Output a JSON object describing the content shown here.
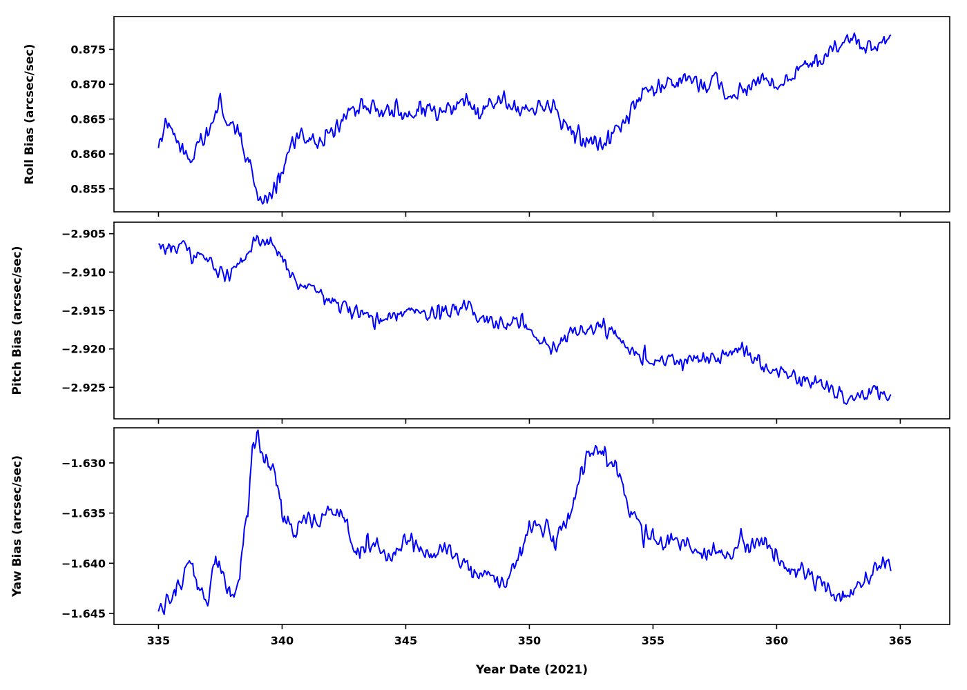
{
  "colors": {
    "series": "#0000ff",
    "axes": "#000000",
    "background": "#ffffff"
  },
  "chart_data": [
    {
      "type": "line",
      "id": "roll",
      "ylabel": "Roll Bias (arcsec/sec)",
      "xlabel": "",
      "xlim": [
        333.2,
        367.0
      ],
      "ylim": [
        0.8517,
        0.8797
      ],
      "xticks": [
        335,
        340,
        345,
        350,
        355,
        360,
        365
      ],
      "show_xticklabels": false,
      "yticks": [
        0.855,
        0.86,
        0.865,
        0.87,
        0.875
      ],
      "ytick_labels": [
        "0.855",
        "0.860",
        "0.865",
        "0.870",
        "0.875"
      ],
      "grid": false,
      "series": [
        {
          "anchors": [
            [
              335.0,
              0.8615
            ],
            [
              335.3,
              0.8645
            ],
            [
              335.6,
              0.8625
            ],
            [
              336.0,
              0.8605
            ],
            [
              336.3,
              0.8585
            ],
            [
              336.6,
              0.862
            ],
            [
              337.0,
              0.8625
            ],
            [
              337.3,
              0.866
            ],
            [
              337.5,
              0.8675
            ],
            [
              337.8,
              0.864
            ],
            [
              338.2,
              0.8635
            ],
            [
              338.5,
              0.86
            ],
            [
              338.8,
              0.858
            ],
            [
              339.0,
              0.8535
            ],
            [
              339.3,
              0.8535
            ],
            [
              339.6,
              0.8545
            ],
            [
              340.0,
              0.8575
            ],
            [
              340.3,
              0.861
            ],
            [
              340.8,
              0.8625
            ],
            [
              341.5,
              0.8615
            ],
            [
              342.0,
              0.8625
            ],
            [
              342.5,
              0.8655
            ],
            [
              343.0,
              0.8665
            ],
            [
              343.5,
              0.867
            ],
            [
              344.0,
              0.866
            ],
            [
              344.5,
              0.866
            ],
            [
              345.0,
              0.8655
            ],
            [
              345.5,
              0.8665
            ],
            [
              346.0,
              0.8665
            ],
            [
              346.5,
              0.8655
            ],
            [
              347.0,
              0.8665
            ],
            [
              347.5,
              0.8675
            ],
            [
              348.0,
              0.8665
            ],
            [
              348.5,
              0.8675
            ],
            [
              349.0,
              0.868
            ],
            [
              349.5,
              0.8665
            ],
            [
              350.0,
              0.867
            ],
            [
              350.5,
              0.8665
            ],
            [
              351.0,
              0.867
            ],
            [
              351.5,
              0.8645
            ],
            [
              352.0,
              0.8625
            ],
            [
              352.5,
              0.862
            ],
            [
              353.0,
              0.8615
            ],
            [
              353.5,
              0.8635
            ],
            [
              354.0,
              0.8655
            ],
            [
              354.5,
              0.868
            ],
            [
              355.0,
              0.8695
            ],
            [
              355.5,
              0.87
            ],
            [
              356.0,
              0.8695
            ],
            [
              356.5,
              0.871
            ],
            [
              357.0,
              0.8695
            ],
            [
              357.5,
              0.8705
            ],
            [
              358.0,
              0.8685
            ],
            [
              358.5,
              0.869
            ],
            [
              359.0,
              0.8695
            ],
            [
              359.5,
              0.871
            ],
            [
              360.0,
              0.87
            ],
            [
              360.5,
              0.8715
            ],
            [
              361.0,
              0.8725
            ],
            [
              361.5,
              0.8725
            ],
            [
              362.0,
              0.8745
            ],
            [
              362.5,
              0.875
            ],
            [
              363.0,
              0.8765
            ],
            [
              363.5,
              0.8755
            ],
            [
              364.0,
              0.875
            ],
            [
              364.6,
              0.876
            ]
          ],
          "noise": 0.0014,
          "x_end": 364.62
        }
      ]
    },
    {
      "type": "line",
      "id": "pitch",
      "ylabel": "Pitch Bias (arcsec/sec)",
      "xlabel": "",
      "xlim": [
        333.2,
        367.0
      ],
      "ylim": [
        -2.9291,
        -2.9035
      ],
      "xticks": [
        335,
        340,
        345,
        350,
        355,
        360,
        365
      ],
      "show_xticklabels": false,
      "yticks": [
        -2.905,
        -2.91,
        -2.915,
        -2.92,
        -2.925
      ],
      "ytick_labels": [
        "−2.905",
        "−2.910",
        "−2.915",
        "−2.920",
        "−2.925"
      ],
      "grid": false,
      "series": [
        {
          "anchors": [
            [
              335.0,
              -2.9068
            ],
            [
              335.5,
              -2.9072
            ],
            [
              336.0,
              -2.9068
            ],
            [
              336.5,
              -2.9078
            ],
            [
              337.0,
              -2.9082
            ],
            [
              337.5,
              -2.9108
            ],
            [
              338.0,
              -2.9102
            ],
            [
              338.5,
              -2.9082
            ],
            [
              339.0,
              -2.9055
            ],
            [
              339.5,
              -2.9062
            ],
            [
              340.0,
              -2.9078
            ],
            [
              340.5,
              -2.9112
            ],
            [
              341.0,
              -2.9122
            ],
            [
              341.5,
              -2.9128
            ],
            [
              342.0,
              -2.9135
            ],
            [
              342.5,
              -2.9145
            ],
            [
              343.0,
              -2.9152
            ],
            [
              343.5,
              -2.9158
            ],
            [
              344.0,
              -2.9162
            ],
            [
              345.0,
              -2.9152
            ],
            [
              345.5,
              -2.9148
            ],
            [
              346.0,
              -2.9155
            ],
            [
              346.5,
              -2.9152
            ],
            [
              347.0,
              -2.9148
            ],
            [
              347.5,
              -2.9142
            ],
            [
              348.0,
              -2.9162
            ],
            [
              349.0,
              -2.9168
            ],
            [
              349.5,
              -2.9165
            ],
            [
              350.0,
              -2.9172
            ],
            [
              350.5,
              -2.9192
            ],
            [
              351.0,
              -2.9198
            ],
            [
              351.5,
              -2.9188
            ],
            [
              352.0,
              -2.9178
            ],
            [
              352.5,
              -2.9172
            ],
            [
              353.0,
              -2.9172
            ],
            [
              353.5,
              -2.9178
            ],
            [
              354.0,
              -2.9198
            ],
            [
              354.5,
              -2.9212
            ],
            [
              355.0,
              -2.9215
            ],
            [
              355.5,
              -2.9212
            ],
            [
              356.0,
              -2.9218
            ],
            [
              356.5,
              -2.9215
            ],
            [
              357.0,
              -2.9212
            ],
            [
              357.5,
              -2.9212
            ],
            [
              358.0,
              -2.9205
            ],
            [
              358.5,
              -2.9198
            ],
            [
              359.0,
              -2.9212
            ],
            [
              359.5,
              -2.9225
            ],
            [
              360.0,
              -2.9228
            ],
            [
              360.5,
              -2.9232
            ],
            [
              361.0,
              -2.9238
            ],
            [
              361.5,
              -2.9242
            ],
            [
              362.0,
              -2.9248
            ],
            [
              362.5,
              -2.9258
            ],
            [
              363.0,
              -2.9265
            ],
            [
              363.5,
              -2.9262
            ],
            [
              364.0,
              -2.9255
            ],
            [
              364.6,
              -2.9262
            ]
          ],
          "noise": 0.0011,
          "x_end": 364.62
        }
      ]
    },
    {
      "type": "line",
      "id": "yaw",
      "ylabel": "Yaw Bias (arcsec/sec)",
      "xlabel": "Year Date (2021)",
      "xlim": [
        333.2,
        367.0
      ],
      "ylim": [
        -1.6461,
        -1.6265
      ],
      "xticks": [
        335,
        340,
        345,
        350,
        355,
        360,
        365
      ],
      "show_xticklabels": true,
      "xtick_labels": [
        "335",
        "340",
        "345",
        "350",
        "355",
        "360",
        "365"
      ],
      "yticks": [
        -1.63,
        -1.635,
        -1.64,
        -1.645
      ],
      "ytick_labels": [
        "−1.630",
        "−1.635",
        "−1.640",
        "−1.645"
      ],
      "grid": false,
      "series": [
        {
          "anchors": [
            [
              335.0,
              -1.6445
            ],
            [
              335.5,
              -1.6438
            ],
            [
              336.0,
              -1.6418
            ],
            [
              336.3,
              -1.6395
            ],
            [
              336.6,
              -1.6425
            ],
            [
              337.0,
              -1.6435
            ],
            [
              337.3,
              -1.6395
            ],
            [
              337.6,
              -1.6412
            ],
            [
              338.0,
              -1.6435
            ],
            [
              338.3,
              -1.6405
            ],
            [
              338.6,
              -1.6345
            ],
            [
              338.8,
              -1.6285
            ],
            [
              339.0,
              -1.6272
            ],
            [
              339.3,
              -1.6295
            ],
            [
              339.6,
              -1.6305
            ],
            [
              340.0,
              -1.6345
            ],
            [
              340.5,
              -1.6372
            ],
            [
              341.0,
              -1.6355
            ],
            [
              341.5,
              -1.6358
            ],
            [
              342.0,
              -1.6345
            ],
            [
              342.5,
              -1.6355
            ],
            [
              343.0,
              -1.6392
            ],
            [
              343.5,
              -1.6375
            ],
            [
              344.0,
              -1.6388
            ],
            [
              344.5,
              -1.6392
            ],
            [
              345.0,
              -1.6378
            ],
            [
              345.5,
              -1.6385
            ],
            [
              346.0,
              -1.6392
            ],
            [
              346.5,
              -1.6385
            ],
            [
              347.0,
              -1.6392
            ],
            [
              347.5,
              -1.6402
            ],
            [
              348.0,
              -1.6412
            ],
            [
              348.5,
              -1.6415
            ],
            [
              349.0,
              -1.6418
            ],
            [
              349.5,
              -1.6395
            ],
            [
              350.0,
              -1.6365
            ],
            [
              350.5,
              -1.6368
            ],
            [
              351.0,
              -1.6375
            ],
            [
              351.5,
              -1.6365
            ],
            [
              352.0,
              -1.6325
            ],
            [
              352.3,
              -1.6295
            ],
            [
              352.6,
              -1.6288
            ],
            [
              353.0,
              -1.6292
            ],
            [
              353.5,
              -1.6305
            ],
            [
              354.0,
              -1.6345
            ],
            [
              354.5,
              -1.6365
            ],
            [
              355.0,
              -1.6372
            ],
            [
              355.5,
              -1.6382
            ],
            [
              356.0,
              -1.6378
            ],
            [
              356.5,
              -1.6385
            ],
            [
              357.0,
              -1.6392
            ],
            [
              357.5,
              -1.6385
            ],
            [
              358.0,
              -1.6395
            ],
            [
              358.5,
              -1.6378
            ],
            [
              359.0,
              -1.6385
            ],
            [
              359.5,
              -1.6378
            ],
            [
              360.0,
              -1.6395
            ],
            [
              360.5,
              -1.6405
            ],
            [
              361.0,
              -1.6412
            ],
            [
              361.5,
              -1.6418
            ],
            [
              362.0,
              -1.6425
            ],
            [
              362.5,
              -1.6438
            ],
            [
              363.0,
              -1.6428
            ],
            [
              363.5,
              -1.6418
            ],
            [
              364.0,
              -1.6402
            ],
            [
              364.6,
              -1.6402
            ]
          ],
          "noise": 0.001,
          "x_end": 364.62
        }
      ]
    }
  ]
}
